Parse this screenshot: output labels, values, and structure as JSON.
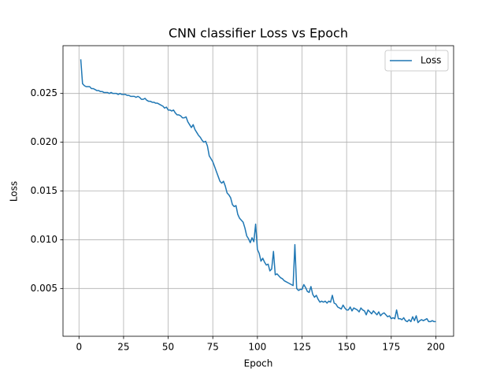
{
  "chart_data": {
    "type": "line",
    "title": "CNN classifier Loss vs Epoch",
    "x_label": "Epoch",
    "y_label": "Loss",
    "x": [
      1,
      2,
      3,
      4,
      5,
      6,
      7,
      8,
      9,
      10,
      11,
      12,
      13,
      14,
      15,
      16,
      17,
      18,
      19,
      20,
      21,
      22,
      23,
      24,
      25,
      26,
      27,
      28,
      29,
      30,
      31,
      32,
      33,
      34,
      35,
      36,
      37,
      38,
      39,
      40,
      41,
      42,
      43,
      44,
      45,
      46,
      47,
      48,
      49,
      50,
      51,
      52,
      53,
      54,
      55,
      56,
      57,
      58,
      59,
      60,
      61,
      62,
      63,
      64,
      65,
      66,
      67,
      68,
      69,
      70,
      71,
      72,
      73,
      74,
      75,
      76,
      77,
      78,
      79,
      80,
      81,
      82,
      83,
      84,
      85,
      86,
      87,
      88,
      89,
      90,
      91,
      92,
      93,
      94,
      95,
      96,
      97,
      98,
      99,
      100,
      101,
      102,
      103,
      104,
      105,
      106,
      107,
      108,
      109,
      110,
      111,
      112,
      113,
      114,
      115,
      116,
      117,
      118,
      119,
      120,
      121,
      122,
      123,
      124,
      125,
      126,
      127,
      128,
      129,
      130,
      131,
      132,
      133,
      134,
      135,
      136,
      137,
      138,
      139,
      140,
      141,
      142,
      143,
      144,
      145,
      146,
      147,
      148,
      149,
      150,
      151,
      152,
      153,
      154,
      155,
      156,
      157,
      158,
      159,
      160,
      161,
      162,
      163,
      164,
      165,
      166,
      167,
      168,
      169,
      170,
      171,
      172,
      173,
      174,
      175,
      176,
      177,
      178,
      179,
      180,
      181,
      182,
      183,
      184,
      185,
      186,
      187,
      188,
      189,
      190,
      191,
      192,
      193,
      194,
      195,
      196,
      197,
      198,
      199,
      200
    ],
    "series": [
      {
        "name": "Loss",
        "color": "#1f77b4",
        "values": [
          0.0285,
          0.026,
          0.0258,
          0.0257,
          0.0257,
          0.0257,
          0.0255,
          0.0255,
          0.0254,
          0.0253,
          0.0253,
          0.0252,
          0.0252,
          0.0251,
          0.0251,
          0.0251,
          0.025,
          0.0251,
          0.025,
          0.025,
          0.025,
          0.0249,
          0.025,
          0.0249,
          0.0249,
          0.0249,
          0.0248,
          0.0248,
          0.0247,
          0.0247,
          0.0247,
          0.0246,
          0.0247,
          0.0246,
          0.0244,
          0.0244,
          0.0245,
          0.0243,
          0.0242,
          0.0242,
          0.0241,
          0.0241,
          0.024,
          0.024,
          0.0239,
          0.0238,
          0.0237,
          0.0235,
          0.0236,
          0.0233,
          0.0233,
          0.0232,
          0.0233,
          0.023,
          0.0228,
          0.0228,
          0.0227,
          0.0225,
          0.0225,
          0.0226,
          0.0221,
          0.0218,
          0.0215,
          0.0218,
          0.0213,
          0.021,
          0.0207,
          0.0205,
          0.0202,
          0.02,
          0.0201,
          0.0196,
          0.0186,
          0.0183,
          0.018,
          0.0175,
          0.017,
          0.0165,
          0.016,
          0.0158,
          0.016,
          0.0155,
          0.0148,
          0.0146,
          0.0143,
          0.0136,
          0.0134,
          0.0135,
          0.0126,
          0.0122,
          0.012,
          0.0118,
          0.0112,
          0.0104,
          0.0101,
          0.0097,
          0.0102,
          0.0098,
          0.0116,
          0.009,
          0.0086,
          0.0078,
          0.0081,
          0.0077,
          0.0074,
          0.0075,
          0.0068,
          0.007,
          0.0088,
          0.0064,
          0.0065,
          0.0063,
          0.0061,
          0.006,
          0.0058,
          0.0057,
          0.0056,
          0.0055,
          0.0054,
          0.0053,
          0.0095,
          0.005,
          0.0048,
          0.0049,
          0.0049,
          0.0054,
          0.0051,
          0.0047,
          0.0046,
          0.0052,
          0.0044,
          0.0041,
          0.0043,
          0.0039,
          0.0036,
          0.0037,
          0.0036,
          0.0037,
          0.0035,
          0.0037,
          0.0036,
          0.0043,
          0.0035,
          0.0034,
          0.0031,
          0.003,
          0.0029,
          0.0033,
          0.003,
          0.0028,
          0.0028,
          0.0031,
          0.0027,
          0.003,
          0.0029,
          0.0028,
          0.0026,
          0.003,
          0.0028,
          0.0027,
          0.0023,
          0.0028,
          0.0026,
          0.0024,
          0.0027,
          0.0025,
          0.0023,
          0.0026,
          0.0022,
          0.0024,
          0.0025,
          0.0023,
          0.0021,
          0.0022,
          0.0019,
          0.002,
          0.0019,
          0.0028,
          0.0019,
          0.0019,
          0.0018,
          0.002,
          0.0017,
          0.0016,
          0.0018,
          0.0016,
          0.0021,
          0.0017,
          0.0022,
          0.0015,
          0.0017,
          0.0018,
          0.0017,
          0.0018,
          0.0019,
          0.0016,
          0.0016,
          0.0017,
          0.0016,
          0.0016
        ]
      }
    ],
    "xlim": [
      -8.95,
      209.95
    ],
    "ylim": [
      0.0001,
      0.0299
    ],
    "xticks": [
      0,
      25,
      50,
      75,
      100,
      125,
      150,
      175,
      200
    ],
    "yticks": [
      0.005,
      {
        "value": 0.01,
        "label": "0.010"
      },
      0.015,
      {
        "value": 0.02,
        "label": "0.020"
      },
      0.025
    ],
    "grid": true,
    "legend": "upper right"
  }
}
